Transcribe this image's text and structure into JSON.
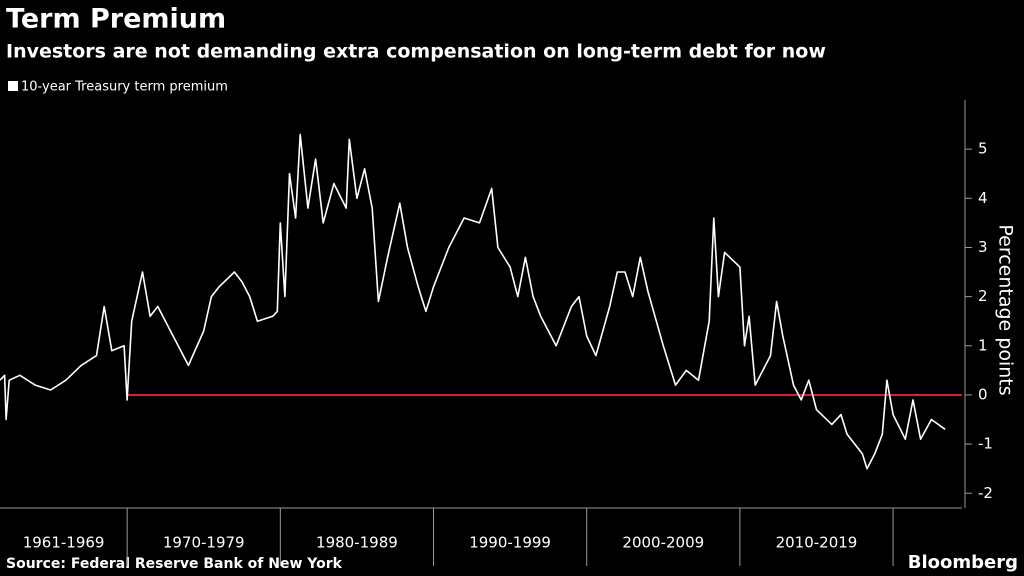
{
  "chart_data": {
    "type": "line",
    "title": "Term Premium",
    "subtitle": "Investors are not demanding extra compensation on long-term debt for now",
    "y_label": "Percentage points",
    "source": "Source: Federal Reserve Bank of New York",
    "brand": "Bloomberg",
    "periods": [
      "1961-1969",
      "1970-1979",
      "1980-1989",
      "1990-1999",
      "2000-2009",
      "2010-2019"
    ],
    "xlim": [
      1961.7,
      2024.5
    ],
    "xticks": [
      1970,
      1980,
      1990,
      2000,
      2010,
      2020
    ],
    "ylim": [
      -2.3,
      6
    ],
    "yticks": [
      -2,
      -1,
      0,
      1,
      2,
      3,
      4,
      5
    ],
    "reference_line": {
      "value": 0,
      "color": "#e0193c"
    },
    "series": [
      {
        "name": "10-year Treasury term premium",
        "color": "#ffffff",
        "x": [
          1961.7,
          1962,
          1962.1,
          1962.3,
          1963,
          1964,
          1965,
          1966,
          1967,
          1968,
          1968.5,
          1969,
          1969.8,
          1970,
          1970.3,
          1971,
          1971.5,
          1972,
          1973,
          1974,
          1975,
          1975.5,
          1976,
          1977,
          1977.5,
          1978,
          1978.5,
          1979.5,
          1979.8,
          1980,
          1980.3,
          1980.6,
          1981,
          1981.3,
          1981.8,
          1982.3,
          1982.8,
          1983.5,
          1984.3,
          1984.5,
          1985,
          1985.5,
          1986,
          1986.4,
          1987,
          1987.8,
          1988.3,
          1989,
          1989.5,
          1990,
          1991,
          1992,
          1993,
          1993.8,
          1994.2,
          1995,
          1995.5,
          1996,
          1996.5,
          1997,
          1998,
          1999,
          1999.5,
          2000,
          2000.6,
          2001.5,
          2002,
          2002.5,
          2003,
          2003.5,
          2004,
          2005,
          2005.8,
          2006.5,
          2007.3,
          2008,
          2008.3,
          2008.6,
          2009,
          2010,
          2010.3,
          2010.6,
          2011,
          2012,
          2012.4,
          2012.8,
          2013.5,
          2014,
          2014.5,
          2015,
          2016,
          2016.6,
          2017,
          2018,
          2018.3,
          2018.8,
          2019.3,
          2019.6,
          2020,
          2020.8,
          2021.3,
          2021.8,
          2022.5,
          2023.4
        ],
        "values": [
          0.3,
          0.4,
          -0.5,
          0.3,
          0.4,
          0.2,
          0.1,
          0.3,
          0.6,
          0.8,
          1.8,
          0.9,
          1.0,
          -0.1,
          1.5,
          2.5,
          1.6,
          1.8,
          1.2,
          0.6,
          1.3,
          2.0,
          2.2,
          2.5,
          2.3,
          2.0,
          1.5,
          1.6,
          1.7,
          3.5,
          2.0,
          4.5,
          3.6,
          5.3,
          3.8,
          4.8,
          3.5,
          4.3,
          3.8,
          5.2,
          4.0,
          4.6,
          3.8,
          1.9,
          2.8,
          3.9,
          3.0,
          2.2,
          1.7,
          2.2,
          3.0,
          3.6,
          3.5,
          4.2,
          3.0,
          2.6,
          2.0,
          2.8,
          2.0,
          1.6,
          1.0,
          1.8,
          2.0,
          1.2,
          0.8,
          1.8,
          2.5,
          2.5,
          2.0,
          2.8,
          2.1,
          1.0,
          0.2,
          0.5,
          0.3,
          1.5,
          3.6,
          2.0,
          2.9,
          2.6,
          1.0,
          1.6,
          0.2,
          0.8,
          1.9,
          1.2,
          0.2,
          -0.1,
          0.3,
          -0.3,
          -0.6,
          -0.4,
          -0.8,
          -1.2,
          -1.5,
          -1.2,
          -0.8,
          0.3,
          -0.4,
          -0.9,
          -0.1,
          -0.9,
          -0.5,
          -0.7
        ]
      }
    ]
  }
}
